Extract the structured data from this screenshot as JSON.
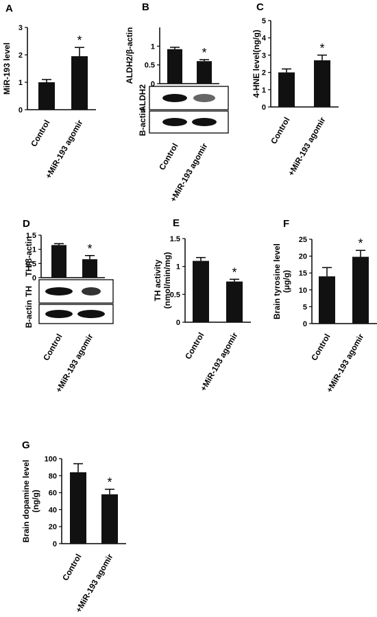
{
  "chart_data": [
    {
      "panel": "A",
      "type": "bar",
      "categories": [
        "Control",
        "+MiR-193 agomir"
      ],
      "values": [
        1.0,
        1.95
      ],
      "errors": [
        0.1,
        0.32
      ],
      "ylabel": "MiR-193 level",
      "ylim": [
        0,
        3
      ],
      "yticks": [
        "0",
        "1",
        "2",
        "3"
      ],
      "significance": [
        "",
        "*"
      ]
    },
    {
      "panel": "B",
      "type": "bar",
      "categories": [
        "Control",
        "+MiR-193 agomir"
      ],
      "values": [
        0.92,
        0.6
      ],
      "errors": [
        0.05,
        0.04
      ],
      "ylabel": "ALDH2/β-actin",
      "ylim": [
        0,
        1.5
      ],
      "yticks": [
        "0",
        "0.5",
        "1"
      ],
      "significance": [
        "",
        "*"
      ],
      "blots": [
        "ALDH2",
        "B-actin"
      ]
    },
    {
      "panel": "C",
      "type": "bar",
      "categories": [
        "Control",
        "+MiR-193 agomir"
      ],
      "values": [
        2.0,
        2.7
      ],
      "errors": [
        0.2,
        0.3
      ],
      "ylabel": "4-HNE level(ng/g)",
      "ylim": [
        0,
        5
      ],
      "yticks": [
        "0",
        "1",
        "2",
        "3",
        "4",
        "5"
      ],
      "significance": [
        "",
        "*"
      ]
    },
    {
      "panel": "D",
      "type": "bar",
      "categories": [
        "Control",
        "+MiR-193 agomir"
      ],
      "values": [
        1.15,
        0.65
      ],
      "errors": [
        0.05,
        0.13
      ],
      "ylabel": "TH/β-actin",
      "ylim": [
        0,
        1.5
      ],
      "yticks": [
        "0",
        "0.5",
        "1",
        "1.5"
      ],
      "significance": [
        "",
        "*"
      ],
      "blots": [
        "TH",
        "B-actin"
      ]
    },
    {
      "panel": "E",
      "type": "bar",
      "categories": [
        "Control",
        "+MiR-193 agomir"
      ],
      "values": [
        1.1,
        0.73
      ],
      "errors": [
        0.06,
        0.04
      ],
      "ylabel": "TH activity\n(nmol/min/mg)",
      "ylim": [
        0,
        1.5
      ],
      "yticks": [
        "0",
        "0.5",
        "1",
        "1.5"
      ],
      "significance": [
        "",
        "*"
      ]
    },
    {
      "panel": "F",
      "type": "bar",
      "categories": [
        "Control",
        "+MiR-193 agomir"
      ],
      "values": [
        14.0,
        19.8
      ],
      "errors": [
        2.6,
        1.9
      ],
      "ylabel": "Brain tyrosine level\n(μg/g)",
      "ylim": [
        0,
        25
      ],
      "yticks": [
        "0",
        "5",
        "10",
        "15",
        "20",
        "25"
      ],
      "significance": [
        "",
        "*"
      ]
    },
    {
      "panel": "G",
      "type": "bar",
      "categories": [
        "Control",
        "+MiR-193 agomir"
      ],
      "values": [
        84,
        58
      ],
      "errors": [
        10,
        6
      ],
      "ylabel": "Brain dopamine level\n(ng/g)",
      "ylim": [
        0,
        100
      ],
      "yticks": [
        "0",
        "20",
        "40",
        "60",
        "80",
        "100"
      ],
      "significance": [
        "",
        "*"
      ]
    }
  ]
}
